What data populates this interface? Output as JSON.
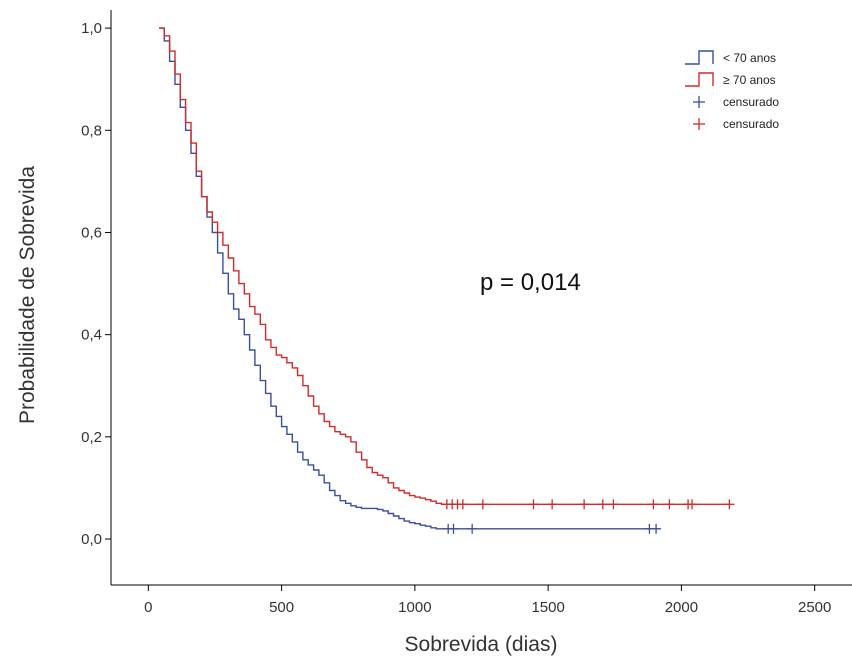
{
  "chart_data": {
    "type": "line",
    "xlabel": "Sobrevida (dias)",
    "ylabel": "Probabilidade de Sobrevida",
    "xlim": [
      -140,
      2640
    ],
    "ylim": [
      -0.09,
      1.055
    ],
    "xticks": [
      0,
      500,
      1000,
      1500,
      2000,
      2500
    ],
    "xtick_labels": [
      "0",
      "500",
      "1000",
      "1500",
      "2000",
      "2500"
    ],
    "yticks": [
      0.0,
      0.2,
      0.4,
      0.6,
      0.8,
      1.0
    ],
    "ytick_labels": [
      "0,0",
      "0,2",
      "0,4",
      "0,6",
      "0,8",
      "1,0"
    ],
    "grid": false,
    "legend_position": "top-right",
    "legend": [
      {
        "label": "< 70 anos",
        "kind": "line",
        "color": "#3b4ea0"
      },
      {
        "label": "≥ 70 anos",
        "kind": "line",
        "color": "#d42a2a"
      },
      {
        "label": "censurado",
        "kind": "censor",
        "color": "#3b4ea0"
      },
      {
        "label": "censurado",
        "kind": "censor",
        "color": "#d42a2a"
      }
    ],
    "annotation": "p = 0,014",
    "series": [
      {
        "name": "< 70 anos",
        "color": "#3b4ea0",
        "x": [
          40,
          60,
          80,
          100,
          120,
          140,
          160,
          180,
          200,
          220,
          240,
          260,
          280,
          300,
          320,
          340,
          360,
          380,
          400,
          420,
          440,
          460,
          480,
          500,
          520,
          540,
          560,
          580,
          600,
          620,
          640,
          660,
          680,
          700,
          720,
          740,
          760,
          780,
          800,
          820,
          840,
          860,
          880,
          900,
          920,
          940,
          960,
          980,
          1000,
          1020,
          1040,
          1060,
          1080,
          1100,
          1920
        ],
        "y": [
          1.0,
          0.975,
          0.935,
          0.89,
          0.845,
          0.8,
          0.755,
          0.71,
          0.67,
          0.63,
          0.6,
          0.56,
          0.52,
          0.48,
          0.45,
          0.43,
          0.4,
          0.37,
          0.34,
          0.31,
          0.285,
          0.26,
          0.24,
          0.22,
          0.205,
          0.19,
          0.17,
          0.155,
          0.145,
          0.135,
          0.125,
          0.11,
          0.095,
          0.085,
          0.075,
          0.07,
          0.065,
          0.062,
          0.06,
          0.06,
          0.06,
          0.058,
          0.055,
          0.05,
          0.045,
          0.04,
          0.035,
          0.032,
          0.03,
          0.027,
          0.025,
          0.022,
          0.02,
          0.02,
          0.02
        ]
      },
      {
        "name": "≥ 70 anos",
        "color": "#d42a2a",
        "x": [
          40,
          60,
          80,
          100,
          120,
          140,
          160,
          180,
          200,
          220,
          240,
          260,
          280,
          300,
          320,
          340,
          360,
          380,
          400,
          420,
          440,
          460,
          480,
          500,
          520,
          540,
          560,
          580,
          600,
          620,
          640,
          660,
          680,
          700,
          720,
          740,
          760,
          780,
          800,
          820,
          840,
          860,
          880,
          900,
          920,
          940,
          960,
          980,
          1000,
          1020,
          1040,
          1060,
          1080,
          1100,
          2180
        ],
        "y": [
          1.0,
          0.985,
          0.955,
          0.91,
          0.86,
          0.815,
          0.775,
          0.72,
          0.67,
          0.64,
          0.62,
          0.6,
          0.575,
          0.55,
          0.525,
          0.5,
          0.48,
          0.455,
          0.44,
          0.42,
          0.39,
          0.375,
          0.36,
          0.355,
          0.345,
          0.335,
          0.32,
          0.3,
          0.28,
          0.26,
          0.245,
          0.23,
          0.22,
          0.21,
          0.205,
          0.2,
          0.19,
          0.17,
          0.155,
          0.14,
          0.13,
          0.125,
          0.12,
          0.11,
          0.1,
          0.095,
          0.09,
          0.085,
          0.082,
          0.08,
          0.077,
          0.074,
          0.07,
          0.068,
          0.068
        ]
      }
    ],
    "censored": [
      {
        "series": "< 70 anos",
        "color": "#3b4ea0",
        "x": [
          1125,
          1145,
          1215,
          1880,
          1905
        ],
        "y": [
          0.02,
          0.02,
          0.02,
          0.02,
          0.02
        ]
      },
      {
        "series": "≥ 70 anos",
        "color": "#d42a2a",
        "x": [
          1120,
          1140,
          1160,
          1180,
          1255,
          1445,
          1515,
          1635,
          1705,
          1745,
          1895,
          1955,
          2025,
          2040,
          2180
        ],
        "y": [
          0.068,
          0.068,
          0.068,
          0.068,
          0.068,
          0.068,
          0.068,
          0.068,
          0.068,
          0.068,
          0.068,
          0.068,
          0.068,
          0.068,
          0.068
        ]
      }
    ]
  }
}
